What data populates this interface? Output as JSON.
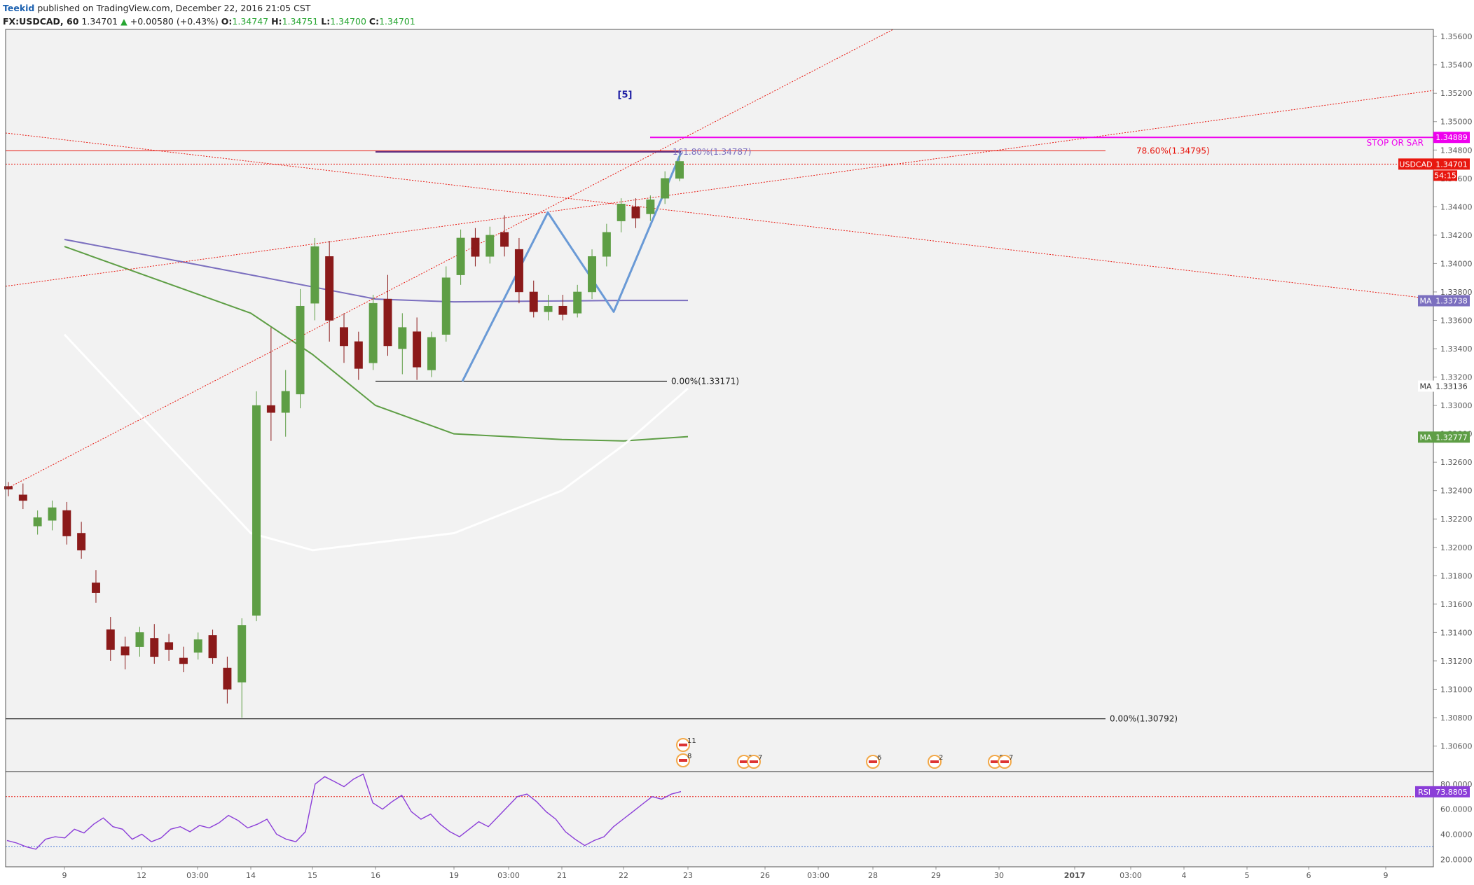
{
  "header": {
    "publisher": "Teekid",
    "published_text": "published on TradingView.com, December 22, 2016 21:05 CST",
    "symbol": "FX:USDCAD, 60",
    "last": "1.34701",
    "arrow": "▲",
    "change": "+0.00580 (+0.43%)",
    "o_label": "O:",
    "o_value": "1.34747",
    "h_label": "H:",
    "h_value": "1.34751",
    "l_label": "L:",
    "l_value": "1.34700",
    "c_label": "C:",
    "c_value": "1.34701"
  },
  "chart_data": {
    "type": "candlestick",
    "symbol": "FX:USDCAD",
    "interval": "60",
    "price_axis": {
      "ylim": [
        1.3042,
        1.3565
      ],
      "ticks": [
        "1.35600",
        "1.35400",
        "1.35200",
        "1.35000",
        "1.34800",
        "1.34600",
        "1.34400",
        "1.34200",
        "1.34000",
        "1.33800",
        "1.33600",
        "1.33400",
        "1.33200",
        "1.33000",
        "1.32800",
        "1.32600",
        "1.32400",
        "1.32200",
        "1.32000",
        "1.31800",
        "1.31600",
        "1.31400",
        "1.31200",
        "1.31000",
        "1.30800",
        "1.30600"
      ]
    },
    "x_ticks": [
      "9",
      "12",
      "03:00",
      "14",
      "15",
      "16",
      "19",
      "03:00",
      "21",
      "22",
      "23",
      "26",
      "03:00",
      "28",
      "29",
      "30",
      "2017",
      "03:00",
      "4",
      "5",
      "6",
      "9"
    ],
    "annotations": {
      "wave_label": "[5]",
      "fib_161": "161.80%(1.34787)",
      "fib_786": "78.60%(1.34795)",
      "fib_0_upper": "0.00%(1.33171)",
      "fib_0_lower": "0.00%(1.30792)",
      "stop_text": "STOP OR SAR"
    },
    "price_labels": {
      "stop": {
        "name": "",
        "value": "1.34889",
        "price": 1.34889,
        "color": "#ee00ee"
      },
      "usdcad": {
        "name": "USDCAD",
        "value": "1.34701",
        "price": 1.34701,
        "color": "#e8170f"
      },
      "countdown": {
        "value": "54:15"
      },
      "ma_purple": {
        "name": "MA",
        "value": "1.33738",
        "price": 1.33738,
        "color": "#7b6fbf"
      },
      "ma_white": {
        "name": "MA",
        "value": "1.33136",
        "price": 1.33136,
        "color": "#ffffff"
      },
      "ma_green": {
        "name": "MA",
        "value": "1.32777",
        "price": 1.32777,
        "color": "#5e9e45"
      }
    },
    "key_levels": [
      1.34787,
      1.34795,
      1.33171,
      1.30792
    ],
    "candles": [
      [
        "9",
        1.3243,
        1.3246,
        1.3236,
        1.3241
      ],
      [
        "10",
        1.3237,
        1.3245,
        1.3227,
        1.3233
      ],
      [
        "11",
        1.3215,
        1.3226,
        1.3209,
        1.3221
      ],
      [
        "12",
        1.3219,
        1.3233,
        1.3212,
        1.3228
      ],
      [
        "13",
        1.3226,
        1.3232,
        1.3202,
        1.3208
      ],
      [
        "14",
        1.321,
        1.3218,
        1.3192,
        1.3198
      ],
      [
        "15",
        1.3175,
        1.3184,
        1.3161,
        1.3168
      ],
      [
        "16",
        1.3142,
        1.3151,
        1.312,
        1.3128
      ],
      [
        "17",
        1.313,
        1.3137,
        1.3114,
        1.3124
      ],
      [
        "18",
        1.313,
        1.3144,
        1.3123,
        1.314
      ],
      [
        "19",
        1.3136,
        1.3146,
        1.3118,
        1.3123
      ],
      [
        "20",
        1.3133,
        1.3139,
        1.312,
        1.3128
      ],
      [
        "21",
        1.3122,
        1.313,
        1.3112,
        1.3118
      ],
      [
        "22",
        1.3126,
        1.314,
        1.3121,
        1.3135
      ],
      [
        "23",
        1.3138,
        1.3142,
        1.3118,
        1.3122
      ],
      [
        "24",
        1.3115,
        1.3123,
        1.309,
        1.31
      ],
      [
        "25",
        1.3105,
        1.315,
        1.308,
        1.3145
      ],
      [
        "26",
        1.3152,
        1.331,
        1.3148,
        1.33
      ],
      [
        "27",
        1.33,
        1.3355,
        1.3275,
        1.3295
      ],
      [
        "28",
        1.3295,
        1.3325,
        1.3278,
        1.331
      ],
      [
        "29",
        1.3308,
        1.3382,
        1.3298,
        1.337
      ],
      [
        "30",
        1.3372,
        1.3418,
        1.336,
        1.3412
      ],
      [
        "31",
        1.3405,
        1.3416,
        1.3345,
        1.336
      ],
      [
        "32",
        1.3355,
        1.3365,
        1.333,
        1.3342
      ],
      [
        "33",
        1.3345,
        1.3352,
        1.3318,
        1.3326
      ],
      [
        "34",
        1.333,
        1.3378,
        1.3325,
        1.3372
      ],
      [
        "35",
        1.3375,
        1.3392,
        1.3335,
        1.3342
      ],
      [
        "36",
        1.334,
        1.3365,
        1.3322,
        1.3355
      ],
      [
        "37",
        1.3352,
        1.3362,
        1.3318,
        1.3327
      ],
      [
        "38",
        1.3325,
        1.3352,
        1.332,
        1.3348
      ],
      [
        "39",
        1.335,
        1.3398,
        1.3345,
        1.339
      ],
      [
        "40",
        1.3392,
        1.3424,
        1.3385,
        1.3418
      ],
      [
        "41",
        1.3418,
        1.3425,
        1.3398,
        1.3405
      ],
      [
        "42",
        1.3405,
        1.3426,
        1.34,
        1.342
      ],
      [
        "43",
        1.3422,
        1.3434,
        1.3405,
        1.3412
      ],
      [
        "44",
        1.341,
        1.3418,
        1.3372,
        1.338
      ],
      [
        "45",
        1.338,
        1.3388,
        1.3362,
        1.3366
      ],
      [
        "46",
        1.3366,
        1.3378,
        1.336,
        1.337
      ],
      [
        "47",
        1.337,
        1.3378,
        1.336,
        1.3364
      ],
      [
        "48",
        1.3365,
        1.3385,
        1.3362,
        1.338
      ],
      [
        "49",
        1.338,
        1.341,
        1.3375,
        1.3405
      ],
      [
        "50",
        1.3405,
        1.3428,
        1.3398,
        1.3422
      ],
      [
        "51",
        1.343,
        1.3446,
        1.3422,
        1.3442
      ],
      [
        "52",
        1.344,
        1.3446,
        1.3425,
        1.3432
      ],
      [
        "53",
        1.3435,
        1.3448,
        1.343,
        1.3445
      ],
      [
        "54",
        1.3446,
        1.3465,
        1.3442,
        1.346
      ],
      [
        "55",
        1.346,
        1.3476,
        1.3458,
        1.3472
      ]
    ],
    "moving_averages": [
      {
        "color": "#7b6fbf",
        "x": [
          "9",
          "14",
          "16",
          "19",
          "22",
          "23"
        ],
        "values": [
          1.3417,
          1.3392,
          1.3375,
          1.3373,
          1.3374,
          1.3374
        ]
      },
      {
        "color": "#5e9e45",
        "x": [
          "9",
          "14",
          "15",
          "16",
          "19",
          "21",
          "22",
          "23"
        ],
        "values": [
          1.3412,
          1.3365,
          1.3336,
          1.33,
          1.328,
          1.3276,
          1.3275,
          1.3278
        ]
      },
      {
        "color": "#ffffff",
        "x": [
          "9",
          "14",
          "15",
          "19",
          "21",
          "22",
          "23"
        ],
        "values": [
          1.335,
          1.321,
          1.3198,
          1.321,
          1.324,
          1.3272,
          1.3312
        ]
      }
    ],
    "rsi": {
      "name": "RSI",
      "value": "73.8805",
      "color": "#8b3ed8",
      "ticks": [
        "80.0000",
        "60.0000",
        "40.0000",
        "20.0000"
      ],
      "ylim": [
        14,
        90
      ],
      "levels": [
        70,
        30
      ],
      "values": [
        35,
        33,
        30,
        28,
        36,
        38,
        37,
        44,
        41,
        48,
        53,
        46,
        44,
        36,
        40,
        34,
        37,
        44,
        46,
        42,
        47,
        45,
        49,
        55,
        51,
        45,
        48,
        52,
        40,
        36,
        34,
        42,
        80,
        86,
        82,
        78,
        84,
        88,
        65,
        60,
        66,
        71,
        58,
        52,
        56,
        48,
        42,
        38,
        44,
        50,
        46,
        54,
        62,
        70,
        72,
        66,
        58,
        52,
        42,
        36,
        31,
        35,
        38,
        46,
        52,
        58,
        64,
        70,
        68,
        72,
        74
      ]
    },
    "events": [
      {
        "x": "23",
        "count": "11"
      },
      {
        "x": "23",
        "count": "8"
      },
      {
        "x": "26",
        "count": "2"
      },
      {
        "x": "26",
        "count": "7"
      },
      {
        "x": "28",
        "count": "6"
      },
      {
        "x": "29",
        "count": "2"
      },
      {
        "x": "30",
        "count": "5"
      },
      {
        "x": "30",
        "count": "7"
      }
    ]
  },
  "colors": {
    "plot_bg": "#f2f2f2",
    "bull": "#5e9e45",
    "bear": "#8b1a1a",
    "fib_red": "#e8170f",
    "stop_magenta": "#ee00ee",
    "wave_blue": "#6a9ad6",
    "purple_level": "#5b2d83",
    "wave_label_color": "#1a1aa3"
  }
}
